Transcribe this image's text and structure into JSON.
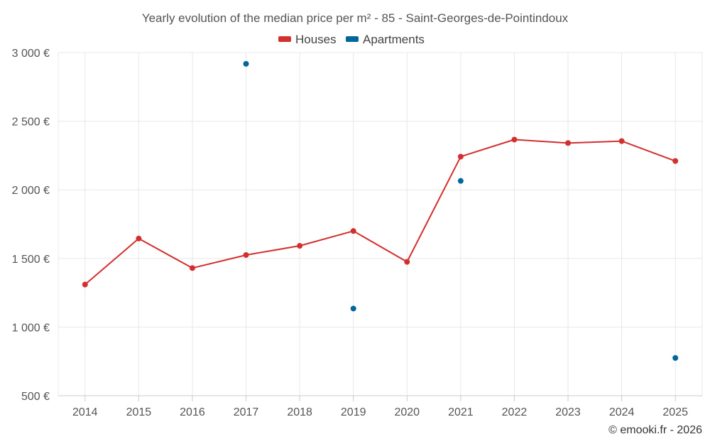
{
  "chart_data": {
    "type": "line",
    "title": "Yearly evolution of the median price per m² - 85 - Saint-Georges-de-Pointindoux",
    "xlabel": "",
    "ylabel": "",
    "categories": [
      "2014",
      "2015",
      "2016",
      "2017",
      "2018",
      "2019",
      "2020",
      "2021",
      "2022",
      "2023",
      "2024",
      "2025"
    ],
    "ylim": [
      500,
      3000
    ],
    "y_ticks": [
      500,
      1000,
      1500,
      2000,
      2500,
      3000
    ],
    "y_tick_labels": [
      "500 €",
      "1 000 €",
      "1 500 €",
      "2 000 €",
      "2 500 €",
      "3 000 €"
    ],
    "grid": true,
    "legend_position": "top-center",
    "series": [
      {
        "name": "Houses",
        "color": "#d32f2f",
        "mode": "line+markers",
        "values": [
          1310,
          1645,
          1430,
          1525,
          1592,
          1700,
          1475,
          2242,
          2366,
          2341,
          2355,
          2210
        ]
      },
      {
        "name": "Apartments",
        "color": "#01679b",
        "mode": "markers",
        "values": [
          null,
          null,
          null,
          2918,
          null,
          1135,
          null,
          2065,
          null,
          null,
          null,
          775
        ]
      }
    ]
  },
  "credit": "© emooki.fr - 2026"
}
